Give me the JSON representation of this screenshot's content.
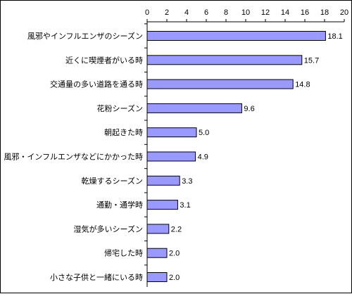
{
  "chart_data": {
    "type": "bar",
    "orientation": "horizontal",
    "title": "",
    "xlabel": "",
    "ylabel": "",
    "xlim": [
      0,
      20
    ],
    "x_ticks": [
      0,
      2,
      4,
      6,
      8,
      10,
      12,
      14,
      16,
      18,
      20
    ],
    "x_axis_position": "top",
    "grid": false,
    "legend": "none",
    "bar_color": "#9999ff",
    "bar_edge_color": "#000000",
    "categories": [
      "風邪やインフルエンザのシーズン",
      "近くに喫煙者がいる時",
      "交通量の多い道路を通る時",
      "花粉シーズン",
      "朝起きた時",
      "風邪・インフルエンザなどにかかった時",
      "乾燥するシーズン",
      "通勤・通学時",
      "湿気が多いシーズン",
      "帰宅した時",
      "小さな子供と一緒にいる時"
    ],
    "values": [
      18.1,
      15.7,
      14.8,
      9.6,
      5.0,
      4.9,
      3.3,
      3.1,
      2.2,
      2.0,
      2.0
    ],
    "value_labels": [
      "18.1",
      "15.7",
      "14.8",
      "9.6",
      "5.0",
      "4.9",
      "3.3",
      "3.1",
      "2.2",
      "2.0",
      "2.0"
    ]
  }
}
